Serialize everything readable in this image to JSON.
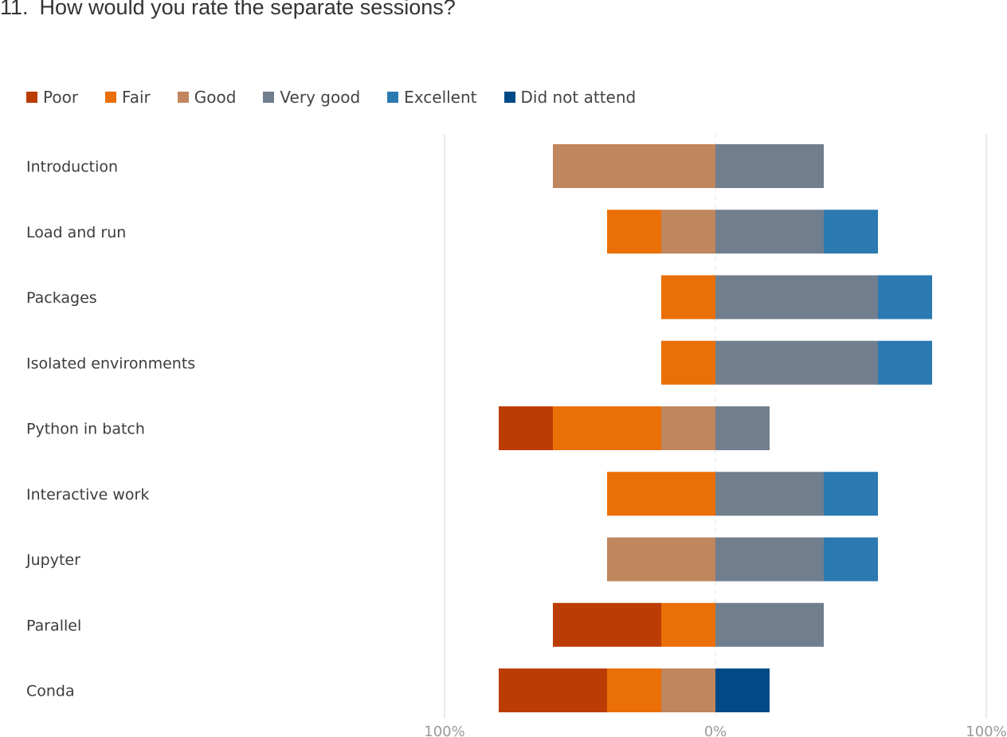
{
  "question": {
    "number": "11.",
    "title": "How would you rate the separate sessions?"
  },
  "legend": [
    {
      "label": "Poor",
      "color": "#bc3c05"
    },
    {
      "label": "Fair",
      "color": "#ea6f07"
    },
    {
      "label": "Good",
      "color": "#c0865d"
    },
    {
      "label": "Very good",
      "color": "#717e8e"
    },
    {
      "label": "Excellent",
      "color": "#2b79b1"
    },
    {
      "label": "Did not attend",
      "color": "#004a87"
    }
  ],
  "chart_data": {
    "type": "bar",
    "orientation": "horizontal",
    "stacked": "diverging",
    "categories": [
      "Introduction",
      "Load and run",
      "Packages",
      "Isolated environments",
      "Python in batch",
      "Interactive work",
      "Jupyter",
      "Parallel",
      "Conda"
    ],
    "series": [
      {
        "name": "Poor",
        "side": "negative",
        "color": "#bc3c05",
        "values": [
          0,
          0,
          0,
          0,
          20,
          0,
          0,
          40,
          40
        ]
      },
      {
        "name": "Fair",
        "side": "negative",
        "color": "#ea6f07",
        "values": [
          0,
          20,
          20,
          20,
          40,
          40,
          0,
          20,
          20
        ]
      },
      {
        "name": "Good",
        "side": "negative",
        "color": "#c0865d",
        "values": [
          60,
          20,
          0,
          0,
          20,
          0,
          40,
          0,
          20
        ]
      },
      {
        "name": "Very good",
        "side": "positive",
        "color": "#717e8e",
        "values": [
          40,
          40,
          60,
          60,
          20,
          40,
          40,
          40,
          0
        ]
      },
      {
        "name": "Excellent",
        "side": "positive",
        "color": "#2b79b1",
        "values": [
          0,
          20,
          20,
          20,
          0,
          20,
          20,
          0,
          0
        ]
      },
      {
        "name": "Did not attend",
        "side": "positive",
        "color": "#004a87",
        "values": [
          0,
          0,
          0,
          0,
          0,
          0,
          0,
          0,
          20
        ]
      }
    ],
    "xlim": [
      -100,
      100
    ],
    "ticks": [
      "100%",
      "0%",
      "100%"
    ],
    "tick_values": [
      -100,
      0,
      100
    ],
    "grid": true,
    "legend_position": "top-left"
  }
}
